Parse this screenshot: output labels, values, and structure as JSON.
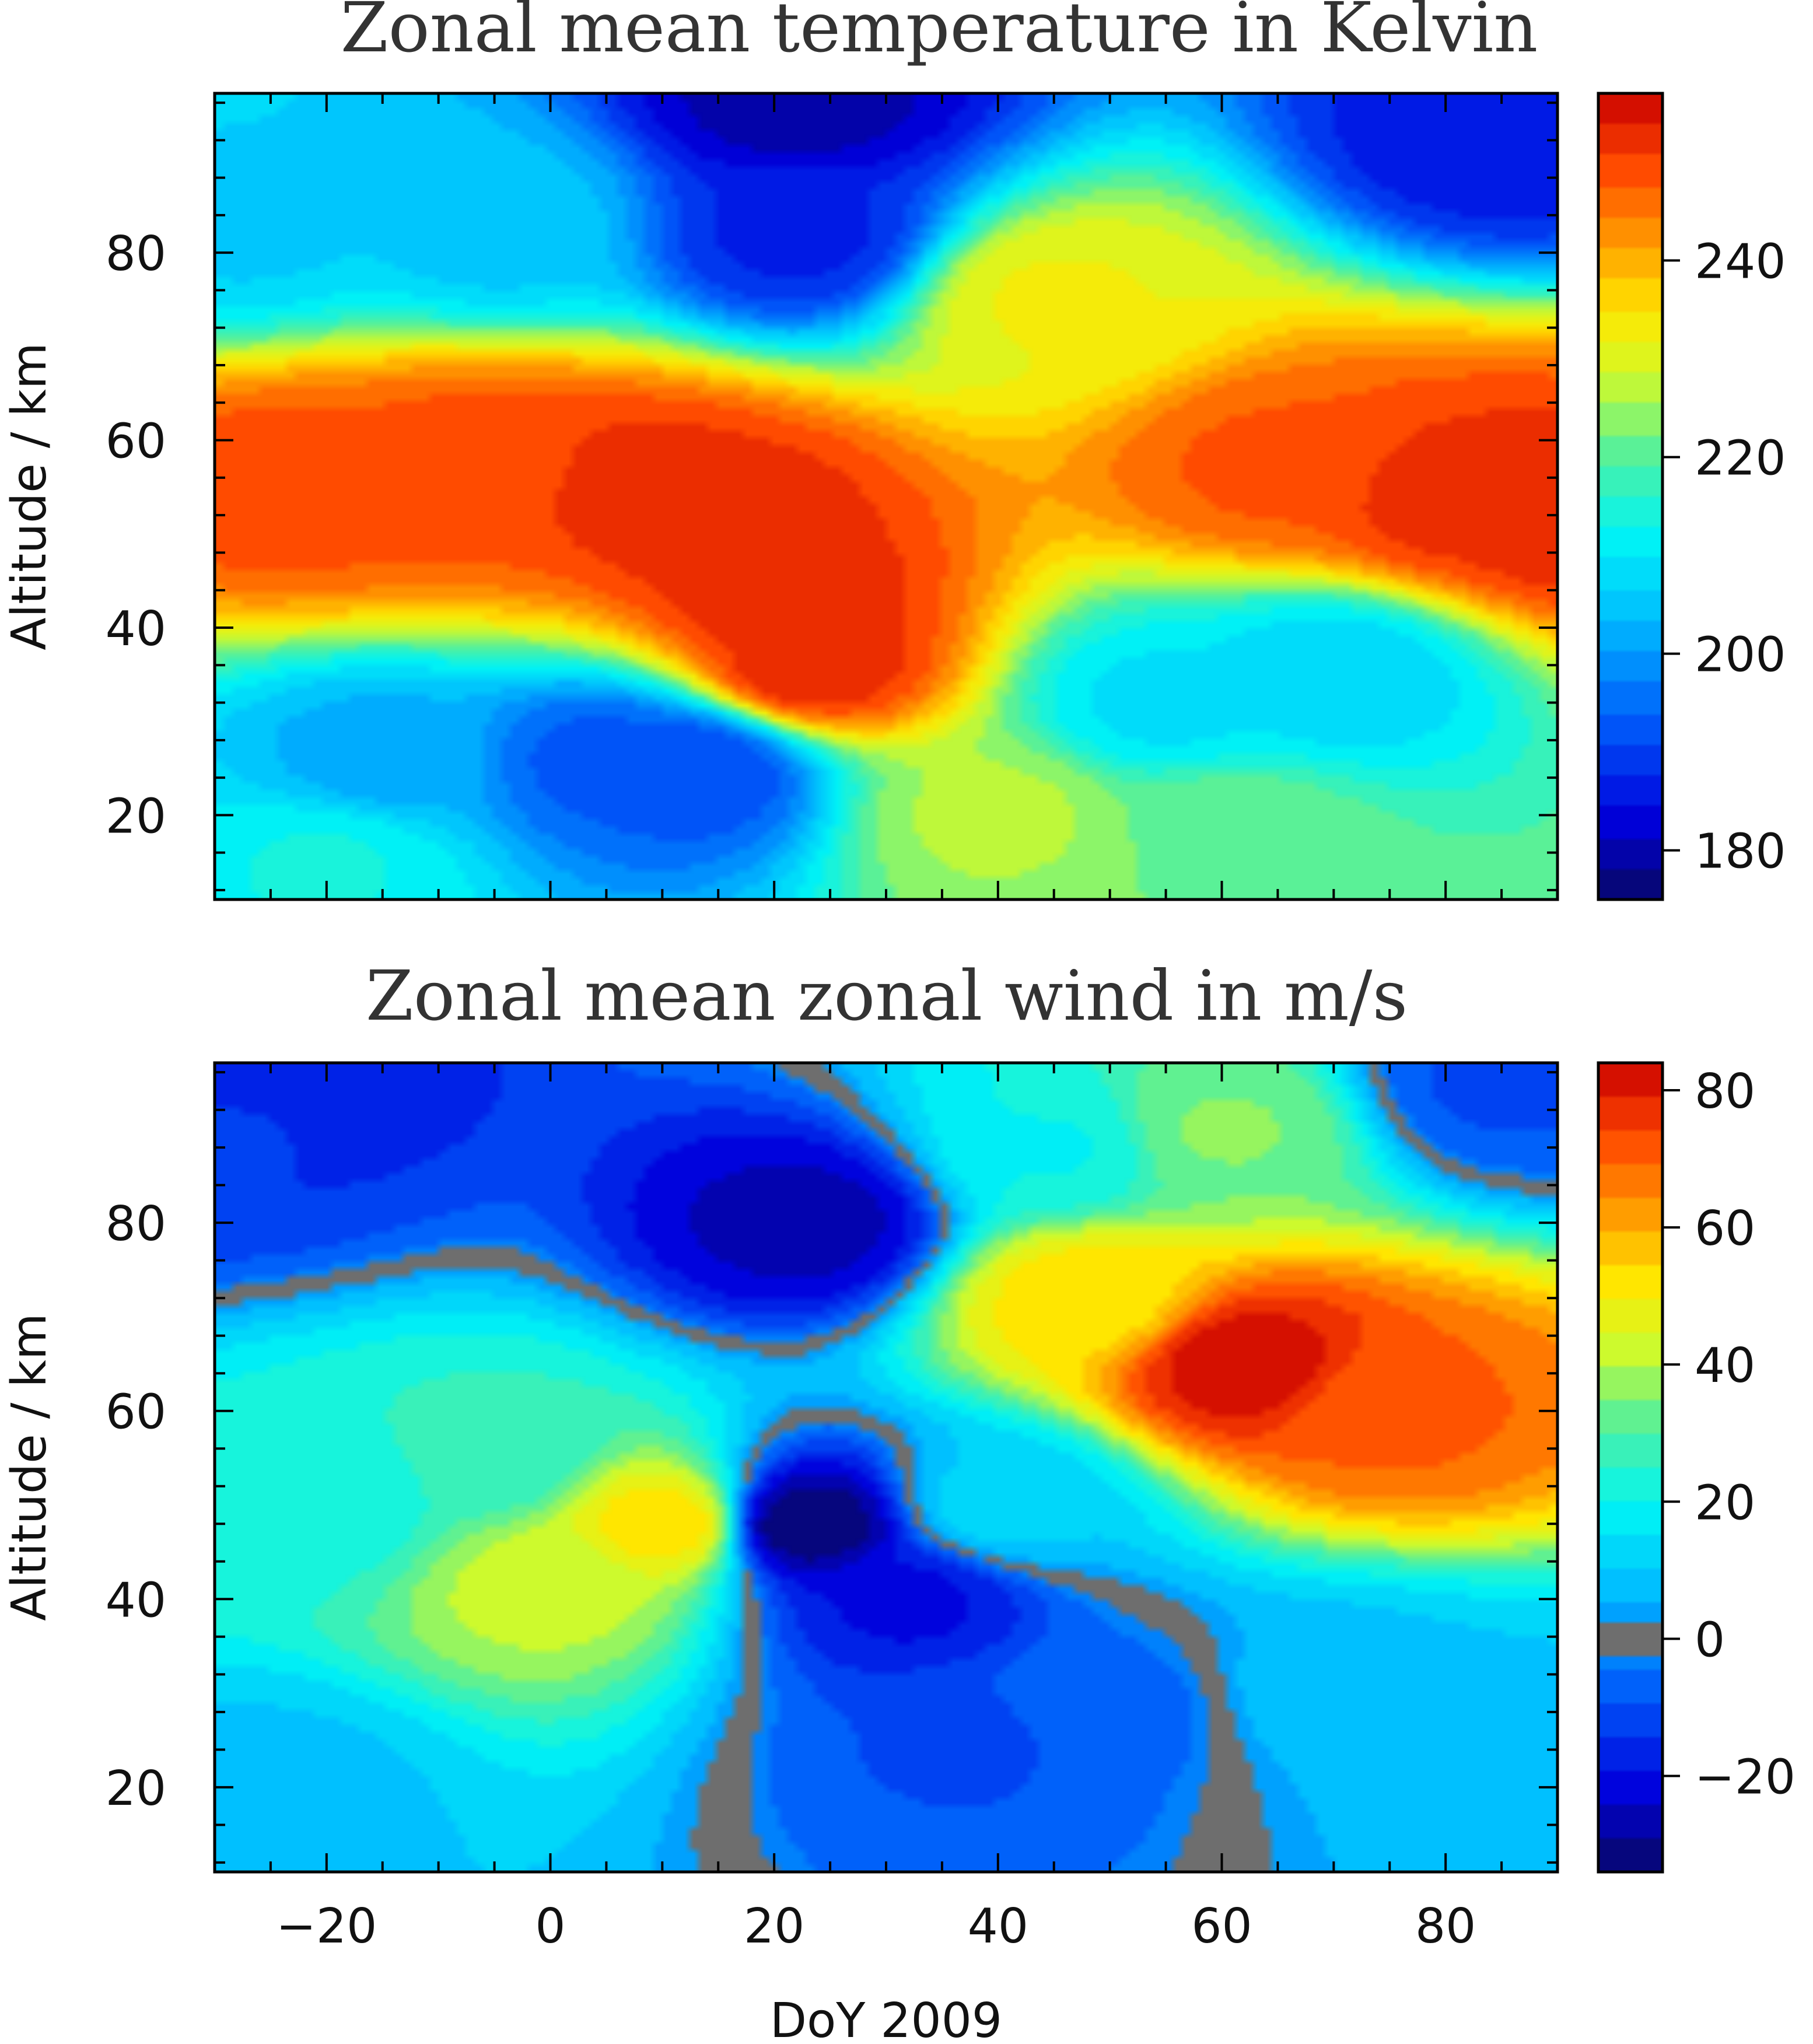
{
  "chart_data": [
    {
      "type": "heatmap",
      "title": "Zonal mean temperature in Kelvin",
      "xlabel": "",
      "ylabel": "Altitude  /  km",
      "x_ticks": [
        -20,
        0,
        20,
        40,
        60,
        80
      ],
      "y_ticks": [
        20,
        40,
        60,
        80
      ],
      "xlim": [
        -30,
        90
      ],
      "ylim": [
        11,
        97
      ],
      "colorbar": {
        "ticks": [
          180,
          200,
          220,
          240
        ],
        "range": [
          175,
          257
        ]
      },
      "features": [
        {
          "x": -23,
          "y": 55,
          "value": 250
        },
        {
          "x": -12,
          "y": 55,
          "value": 248
        },
        {
          "x": -5,
          "y": 57,
          "value": 250
        },
        {
          "x": 8,
          "y": 55,
          "value": 252
        },
        {
          "x": 15,
          "y": 52,
          "value": 253
        },
        {
          "x": 20,
          "y": 44,
          "value": 253
        },
        {
          "x": 23,
          "y": 36,
          "value": 253
        },
        {
          "x": 65,
          "y": 57,
          "value": 248
        },
        {
          "x": 80,
          "y": 54,
          "value": 252
        },
        {
          "x": 90,
          "y": 52,
          "value": 253
        },
        {
          "x": 5,
          "y": 26,
          "value": 193
        },
        {
          "x": 13,
          "y": 25,
          "value": 191
        },
        {
          "x": -15,
          "y": 26,
          "value": 202
        },
        {
          "x": 22,
          "y": 82,
          "value": 187
        },
        {
          "x": 22,
          "y": 96,
          "value": 180
        },
        {
          "x": 85,
          "y": 93,
          "value": 185
        },
        {
          "x": -5,
          "y": 83,
          "value": 205
        },
        {
          "x": -27,
          "y": 83,
          "value": 206
        },
        {
          "x": 45,
          "y": 75,
          "value": 232
        },
        {
          "x": 70,
          "y": 35,
          "value": 207
        },
        {
          "x": 55,
          "y": 32,
          "value": 209
        },
        {
          "x": 40,
          "y": 20,
          "value": 226
        },
        {
          "x": 60,
          "y": 18,
          "value": 222
        },
        {
          "x": -20,
          "y": 15,
          "value": 213
        }
      ]
    },
    {
      "type": "heatmap",
      "title": "Zonal mean zonal wind  in m/s",
      "xlabel": "DoY  2009",
      "ylabel": "Altitude  /  km",
      "x_ticks": [
        -20,
        0,
        20,
        40,
        60,
        80
      ],
      "y_ticks": [
        20,
        40,
        60,
        80
      ],
      "xlim": [
        -30,
        90
      ],
      "ylim": [
        11,
        97
      ],
      "colorbar": {
        "ticks": [
          0,
          20,
          40,
          60,
          80
        ],
        "neg_tick": "−20",
        "neg_value": -20,
        "range": [
          -34,
          84
        ],
        "zero_band": [
          -2.5,
          2.5
        ],
        "zero_color": "#6e6e6e"
      },
      "features": [
        {
          "x": 62,
          "y": 65,
          "value": 82
        },
        {
          "x": 75,
          "y": 60,
          "value": 70
        },
        {
          "x": 48,
          "y": 72,
          "value": 52
        },
        {
          "x": 10,
          "y": 48,
          "value": 52
        },
        {
          "x": 0,
          "y": 42,
          "value": 42
        },
        {
          "x": -5,
          "y": 55,
          "value": 26
        },
        {
          "x": -20,
          "y": 50,
          "value": 22
        },
        {
          "x": 23,
          "y": 48,
          "value": -32
        },
        {
          "x": 23,
          "y": 80,
          "value": -26
        },
        {
          "x": 32,
          "y": 40,
          "value": -20
        },
        {
          "x": 38,
          "y": 25,
          "value": -10
        },
        {
          "x": 50,
          "y": 28,
          "value": -6
        },
        {
          "x": 85,
          "y": 95,
          "value": -10
        },
        {
          "x": -28,
          "y": 90,
          "value": -14
        },
        {
          "x": -25,
          "y": 95,
          "value": -18
        },
        {
          "x": 70,
          "y": 30,
          "value": 8
        },
        {
          "x": 85,
          "y": 25,
          "value": 9
        },
        {
          "x": -25,
          "y": 20,
          "value": 9
        },
        {
          "x": 40,
          "y": 50,
          "value": 12
        },
        {
          "x": 45,
          "y": 88,
          "value": 20
        },
        {
          "x": 60,
          "y": 90,
          "value": 35
        }
      ]
    }
  ]
}
